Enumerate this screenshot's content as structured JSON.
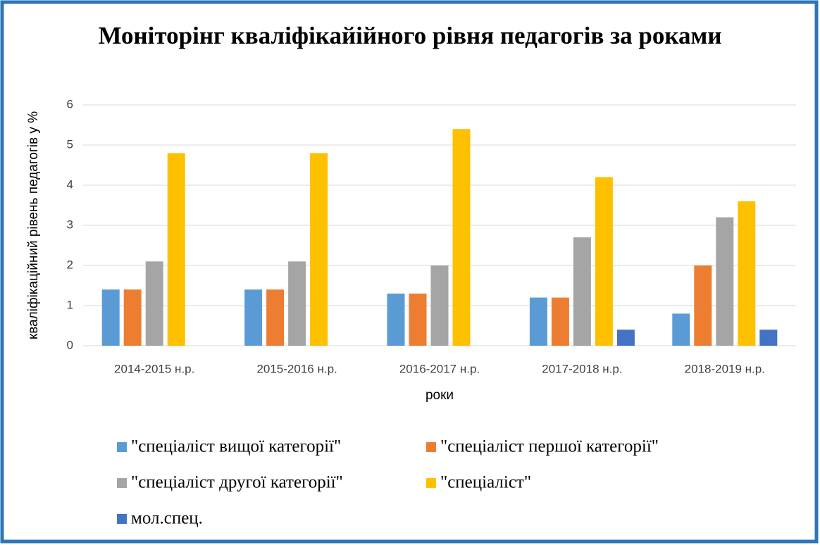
{
  "chart_data": {
    "type": "bar",
    "title": "Моніторінг кваліфікайійного рівня педагогів за роками",
    "x_label": "роки",
    "y_label": "кваліфікаційний рівень педагогів у %",
    "categories": [
      "2014-2015 н.р.",
      "2015-2016 н.р.",
      "2016-2017 н.р.",
      "2017-2018 н.р.",
      "2018-2019 н.р."
    ],
    "series": [
      {
        "name": "\"спеціаліст вищої категорії\"",
        "color": "#5b9bd5",
        "values": [
          1.4,
          1.4,
          1.3,
          1.2,
          0.8
        ]
      },
      {
        "name": "\"спеціаліст першої категорії\"",
        "color": "#ed7d31",
        "values": [
          1.4,
          1.4,
          1.3,
          1.2,
          2.0
        ]
      },
      {
        "name": "\"спеціаліст другої категорії\"",
        "color": "#a5a5a5",
        "values": [
          2.1,
          2.1,
          2.0,
          2.7,
          3.2
        ]
      },
      {
        "name": "\"спеціаліст\"",
        "color": "#ffc000",
        "values": [
          4.8,
          4.8,
          5.4,
          4.2,
          3.6
        ]
      },
      {
        "name": "мол.спец.",
        "color": "#4472c4",
        "values": [
          null,
          null,
          null,
          0.4,
          0.4
        ]
      }
    ],
    "ylim": [
      0,
      6
    ],
    "yticks": [
      0,
      1,
      2,
      3,
      4,
      5,
      6
    ],
    "grid": true,
    "legend": "bottom"
  }
}
